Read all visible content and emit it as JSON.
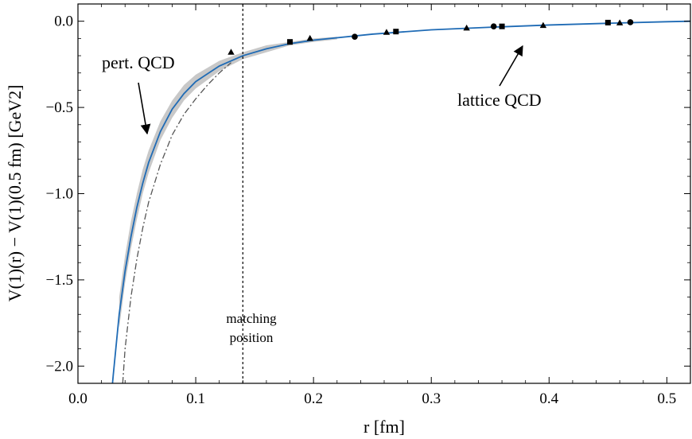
{
  "chart_data": {
    "type": "line",
    "xlabel": "r [fm]",
    "ylabel": "V(1)(r) − V(1)(0.5 fm) [GeV2]",
    "xlim": [
      0.0,
      0.52
    ],
    "ylim": [
      -2.1,
      0.1
    ],
    "x_ticks": [
      0.0,
      0.1,
      0.2,
      0.3,
      0.4,
      0.5
    ],
    "x_tick_labels": [
      "0.0",
      "0.1",
      "0.2",
      "0.3",
      "0.4",
      "0.5"
    ],
    "y_ticks": [
      0.0,
      -0.5,
      -1.0,
      -1.5,
      -2.0
    ],
    "y_tick_labels": [
      "0.0",
      "−0.5",
      "−1.0",
      "−1.5",
      "−2.0"
    ],
    "grid": false,
    "colors": {
      "main_curve": "#1f6bb5",
      "band": "#c8c8c8",
      "pert_curve": "#555555",
      "markers": "#000000"
    },
    "series": [
      {
        "style": "solid-line",
        "points": [
          [
            0.028,
            -2.2
          ],
          [
            0.03,
            -2.05
          ],
          [
            0.035,
            -1.7
          ],
          [
            0.04,
            -1.45
          ],
          [
            0.045,
            -1.25
          ],
          [
            0.05,
            -1.08
          ],
          [
            0.055,
            -0.94
          ],
          [
            0.06,
            -0.82
          ],
          [
            0.07,
            -0.64
          ],
          [
            0.08,
            -0.51
          ],
          [
            0.09,
            -0.42
          ],
          [
            0.1,
            -0.35
          ],
          [
            0.12,
            -0.26
          ],
          [
            0.14,
            -0.2
          ],
          [
            0.16,
            -0.16
          ],
          [
            0.18,
            -0.13
          ],
          [
            0.2,
            -0.11
          ],
          [
            0.25,
            -0.075
          ],
          [
            0.3,
            -0.05
          ],
          [
            0.35,
            -0.035
          ],
          [
            0.4,
            -0.022
          ],
          [
            0.45,
            -0.012
          ],
          [
            0.5,
            -0.003
          ],
          [
            0.52,
            0.0
          ]
        ]
      },
      {
        "style": "band",
        "x": [
          0.035,
          0.04,
          0.045,
          0.05,
          0.055,
          0.06,
          0.07,
          0.08,
          0.09,
          0.1,
          0.12,
          0.14,
          0.16,
          0.18,
          0.2,
          0.22
        ],
        "upper": [
          -1.6,
          -1.36,
          -1.16,
          -1.0,
          -0.86,
          -0.75,
          -0.58,
          -0.46,
          -0.37,
          -0.31,
          -0.23,
          -0.18,
          -0.14,
          -0.12,
          -0.1,
          -0.09
        ],
        "lower": [
          -1.78,
          -1.52,
          -1.32,
          -1.15,
          -1.0,
          -0.88,
          -0.69,
          -0.56,
          -0.46,
          -0.39,
          -0.29,
          -0.22,
          -0.18,
          -0.14,
          -0.12,
          -0.105
        ]
      },
      {
        "style": "dash-dot-line",
        "points": [
          [
            0.038,
            -2.1
          ],
          [
            0.04,
            -1.9
          ],
          [
            0.045,
            -1.6
          ],
          [
            0.05,
            -1.38
          ],
          [
            0.055,
            -1.2
          ],
          [
            0.06,
            -1.05
          ],
          [
            0.07,
            -0.83
          ],
          [
            0.08,
            -0.66
          ],
          [
            0.09,
            -0.54
          ],
          [
            0.1,
            -0.45
          ],
          [
            0.11,
            -0.37
          ],
          [
            0.12,
            -0.3
          ],
          [
            0.13,
            -0.24
          ]
        ]
      },
      {
        "style": "triangle-markers",
        "points": [
          [
            0.13,
            -0.18
          ],
          [
            0.197,
            -0.1
          ],
          [
            0.262,
            -0.065
          ],
          [
            0.33,
            -0.04
          ],
          [
            0.395,
            -0.025
          ],
          [
            0.46,
            -0.01
          ]
        ]
      },
      {
        "style": "square-markers",
        "points": [
          [
            0.18,
            -0.12
          ],
          [
            0.27,
            -0.06
          ],
          [
            0.36,
            -0.03
          ],
          [
            0.45,
            -0.008
          ]
        ]
      },
      {
        "style": "circle-markers",
        "points": [
          [
            0.235,
            -0.09
          ],
          [
            0.353,
            -0.03
          ],
          [
            0.469,
            -0.006
          ]
        ]
      }
    ],
    "vline": {
      "x": 0.14,
      "style": "dotted"
    },
    "annotations": {
      "pert": "pert. QCD",
      "lattice": "lattice QCD",
      "matching_line1": "matching",
      "matching_line2": "position"
    }
  }
}
